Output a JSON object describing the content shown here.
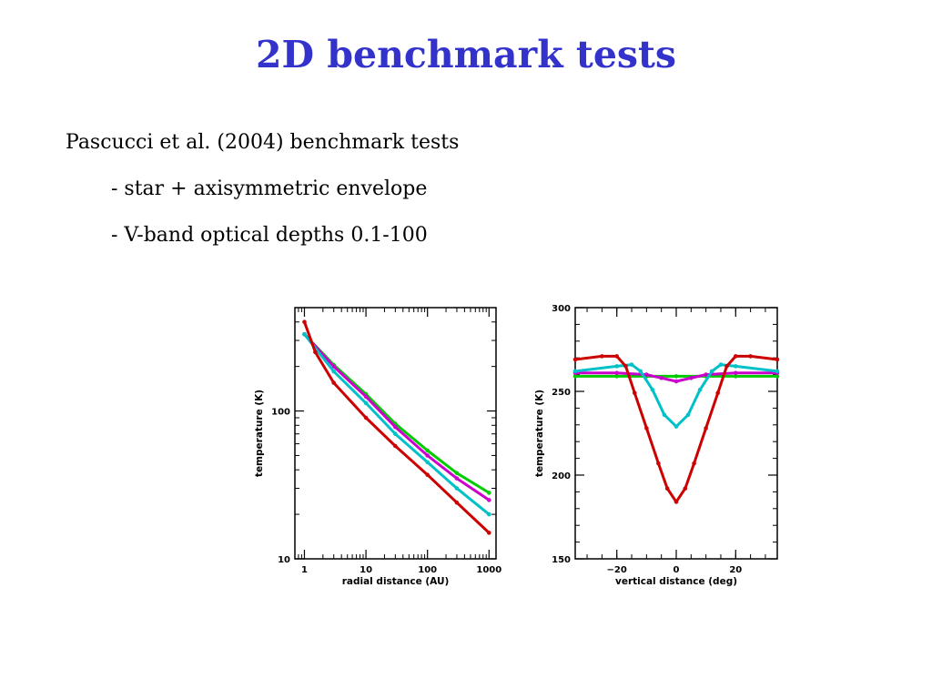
{
  "title": "2D benchmark tests",
  "bullets": {
    "line1": "Pascucci et al. (2004) benchmark tests",
    "line2": "- star + axisymmetric envelope",
    "line3": "- V-band optical depths 0.1-100"
  },
  "colors": {
    "title": "#3333cc",
    "green": "#00cc00",
    "magenta": "#cc00cc",
    "cyan": "#00c0c8",
    "red": "#cc0000"
  },
  "chart_data": [
    {
      "type": "line",
      "xlabel": "radial distance (AU)",
      "ylabel": "temperature (K)",
      "xscale": "log",
      "yscale": "log",
      "xlim": [
        0.7,
        1300
      ],
      "ylim": [
        10,
        500
      ],
      "xticks": [
        1,
        10,
        100,
        1000
      ],
      "xtick_labels": [
        "1",
        "10",
        "100",
        "1000"
      ],
      "yticks": [
        10,
        100
      ],
      "ytick_labels": [
        "10",
        "100"
      ],
      "series": [
        {
          "color": "#00cc00",
          "x": [
            1,
            3,
            10,
            30,
            100,
            300,
            1000
          ],
          "y": [
            330,
            205,
            130,
            82,
            54,
            38,
            28
          ]
        },
        {
          "color": "#cc00cc",
          "x": [
            1,
            3,
            10,
            30,
            100,
            300,
            1000
          ],
          "y": [
            330,
            200,
            125,
            78,
            50,
            35,
            25
          ]
        },
        {
          "color": "#00c0c8",
          "x": [
            1,
            3,
            10,
            30,
            100,
            300,
            1000
          ],
          "y": [
            330,
            185,
            113,
            70,
            45,
            30,
            20
          ]
        },
        {
          "color": "#cc0000",
          "x": [
            1,
            1.5,
            3,
            10,
            30,
            100,
            300,
            1000
          ],
          "y": [
            400,
            250,
            155,
            90,
            58,
            37,
            24,
            15
          ]
        }
      ]
    },
    {
      "type": "line",
      "xlabel": "vertical distance (deg)",
      "ylabel": "temperature (K)",
      "xlim": [
        -34,
        34
      ],
      "ylim": [
        150,
        300
      ],
      "xticks": [
        -20,
        0,
        20
      ],
      "xtick_labels": [
        "−20",
        "0",
        "20"
      ],
      "yticks": [
        150,
        200,
        250,
        300
      ],
      "ytick_labels": [
        "150",
        "200",
        "250",
        "300"
      ],
      "series": [
        {
          "color": "#00cc00",
          "x": [
            -34,
            -20,
            -10,
            0,
            10,
            20,
            34
          ],
          "y": [
            259,
            259,
            259,
            259,
            259,
            259,
            259
          ]
        },
        {
          "color": "#cc00cc",
          "x": [
            -34,
            -20,
            -10,
            -5,
            0,
            5,
            10,
            20,
            34
          ],
          "y": [
            261,
            261,
            260,
            258,
            256,
            258,
            260,
            261,
            261
          ]
        },
        {
          "color": "#00c0c8",
          "x": [
            -34,
            -20,
            -15,
            -12,
            -8,
            -4,
            0,
            4,
            8,
            12,
            15,
            20,
            34
          ],
          "y": [
            262,
            265,
            266,
            262,
            251,
            236,
            229,
            236,
            251,
            262,
            266,
            265,
            262
          ]
        },
        {
          "color": "#cc0000",
          "x": [
            -34,
            -25,
            -20,
            -17,
            -14,
            -10,
            -6,
            -3,
            0,
            3,
            6,
            10,
            14,
            17,
            20,
            25,
            34
          ],
          "y": [
            269,
            271,
            271,
            265,
            249,
            228,
            207,
            192,
            184,
            192,
            207,
            228,
            249,
            265,
            271,
            271,
            269
          ]
        }
      ]
    }
  ]
}
